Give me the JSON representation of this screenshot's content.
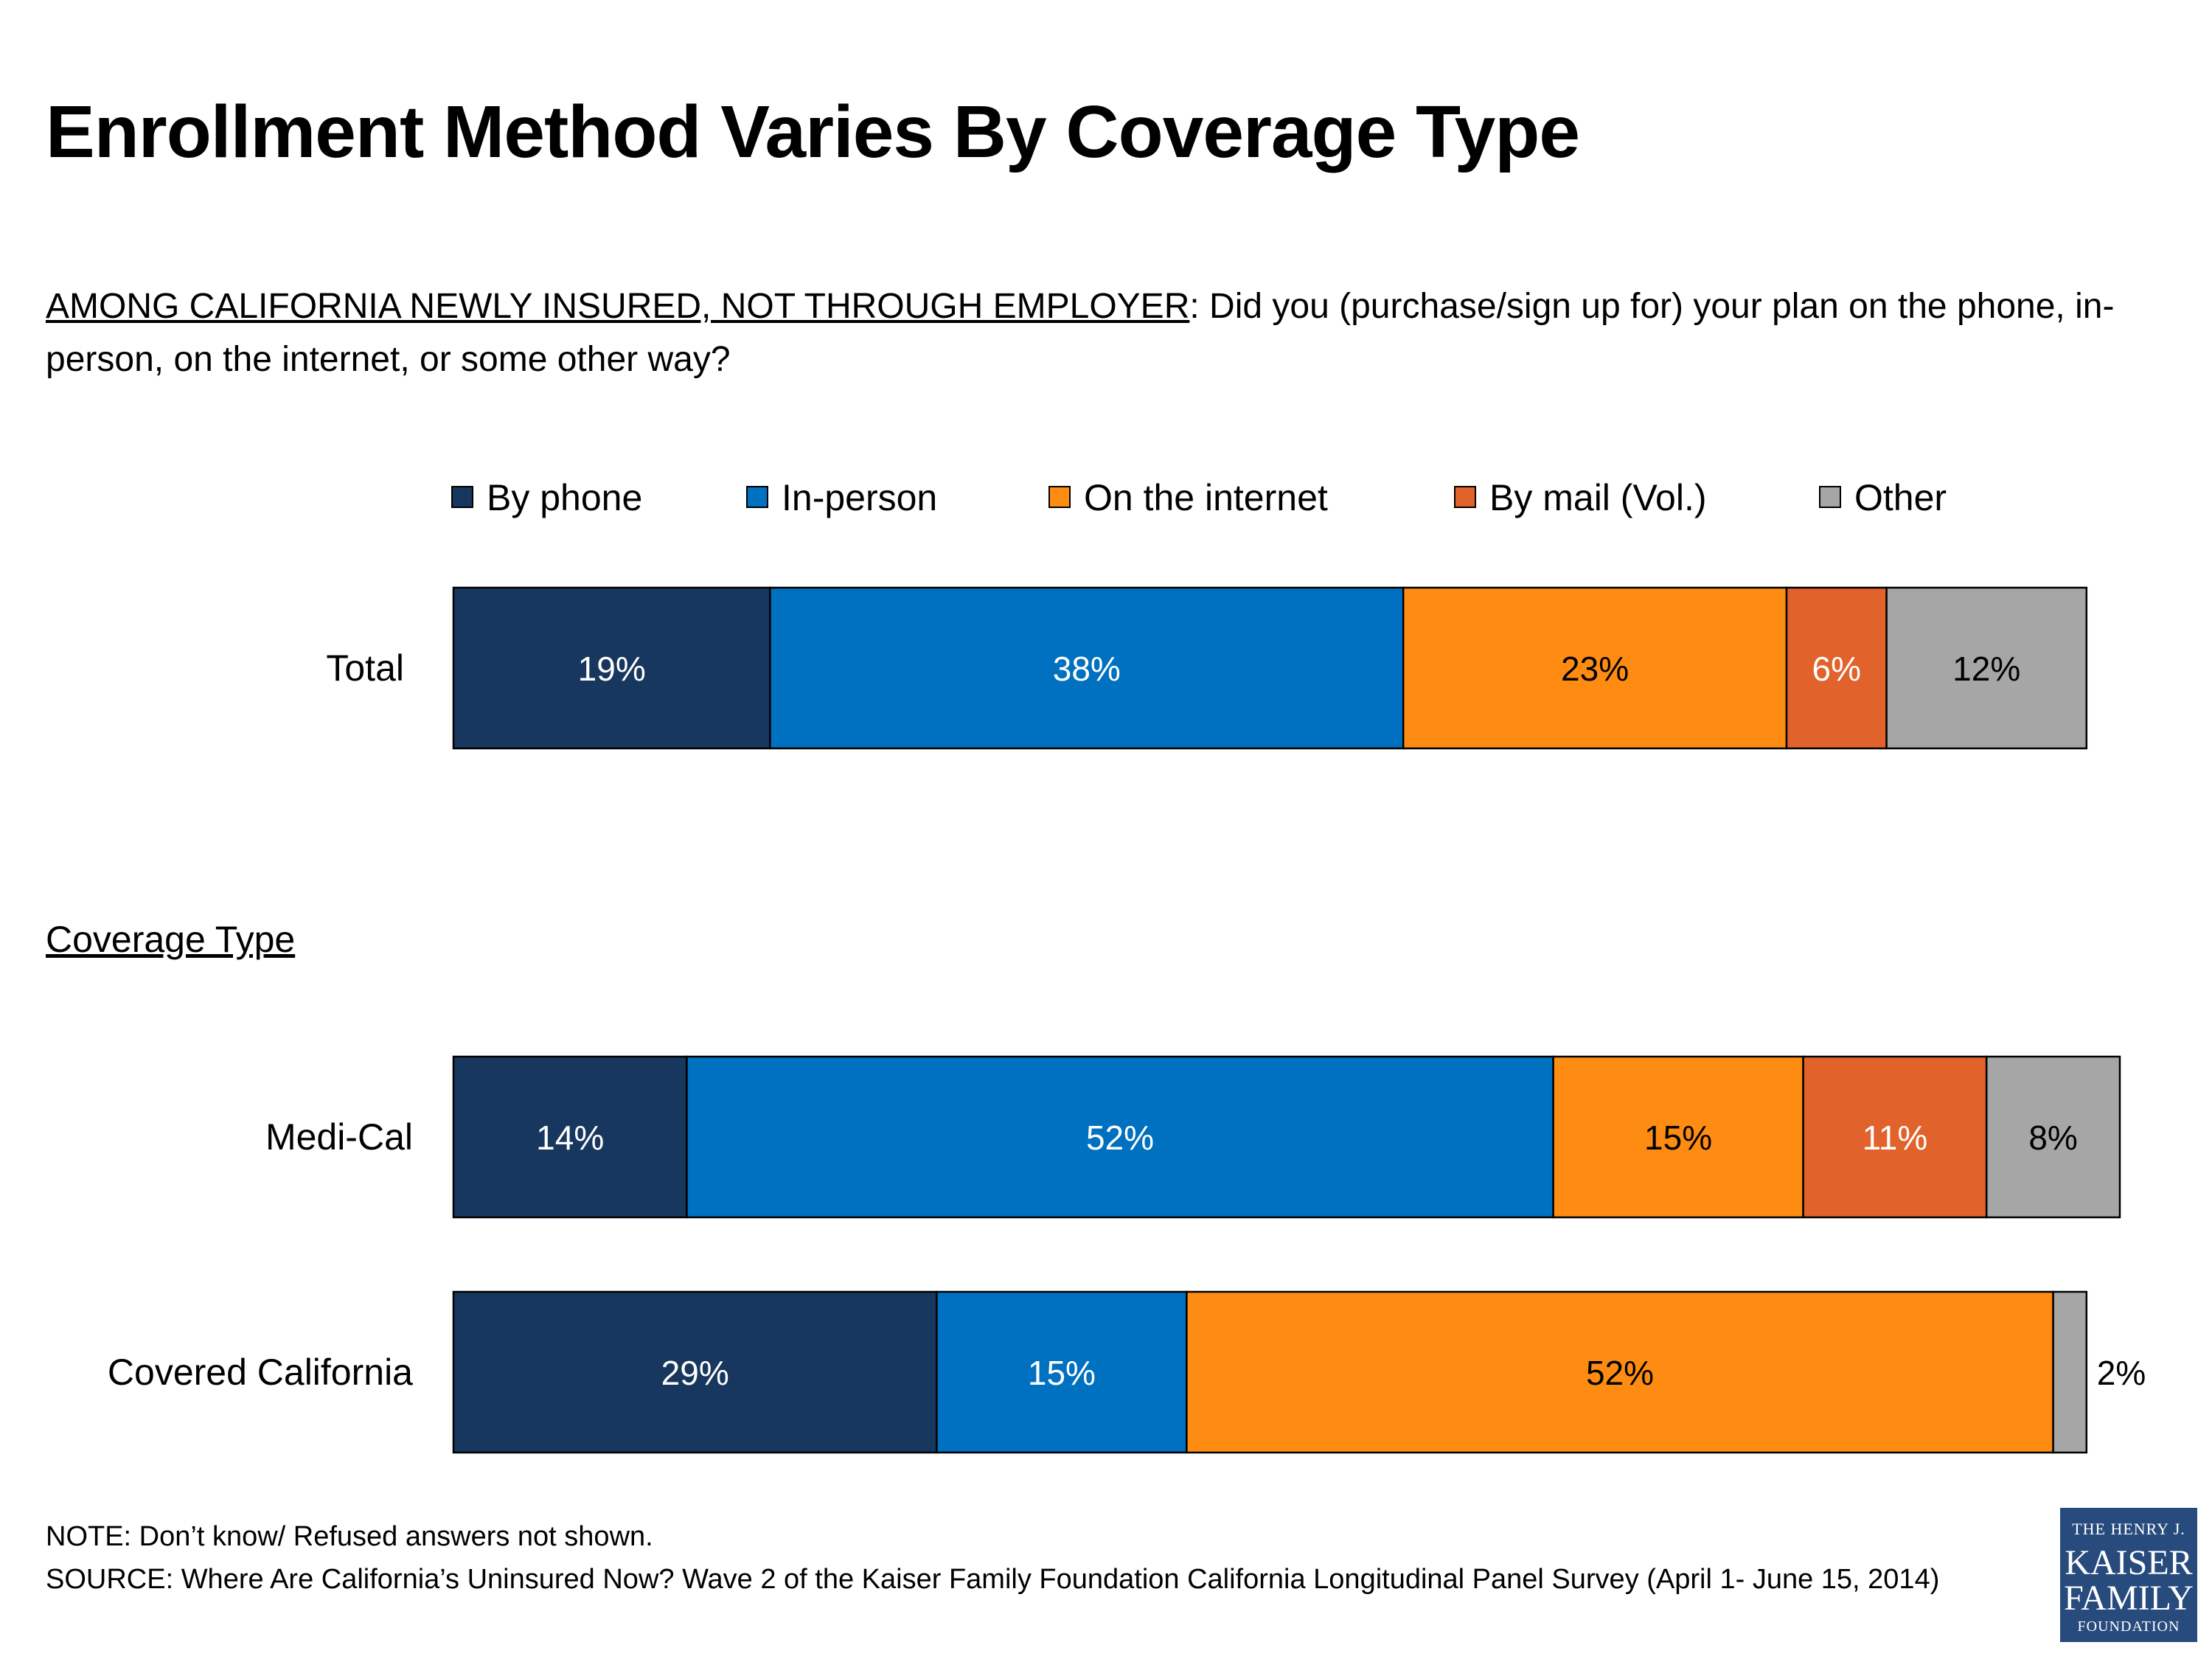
{
  "header": {
    "title": "Enrollment Method Varies By Coverage Type",
    "question_prefix": "AMONG CALIFORNIA NEWLY INSURED, NOT THROUGH EMPLOYER",
    "question_text": ": Did you (purchase/sign up for) your plan on the phone, in-person, on the internet, or some other way?"
  },
  "section_label": "Coverage Type",
  "colors": {
    "by_phone": "#17375e",
    "in_person": "#0070c0",
    "on_internet": "#ff8c12",
    "by_mail": "#e2622b",
    "other": "#a6a6a6"
  },
  "chart_data": {
    "type": "bar",
    "orientation": "horizontal",
    "stacked": true,
    "unit": "%",
    "categories": [
      "Total",
      "Medi-Cal",
      "Covered California"
    ],
    "series": [
      {
        "name": "By phone",
        "color": "#17375e",
        "values": [
          19,
          14,
          29
        ]
      },
      {
        "name": "In-person",
        "color": "#0070c0",
        "values": [
          38,
          52,
          15
        ]
      },
      {
        "name": "On the internet",
        "color": "#ff8c12",
        "values": [
          23,
          15,
          52
        ]
      },
      {
        "name": "By mail (Vol.)",
        "color": "#e2622b",
        "values": [
          6,
          11,
          null
        ]
      },
      {
        "name": "Other",
        "color": "#a6a6a6",
        "values": [
          12,
          8,
          2
        ]
      }
    ],
    "data_labels": [
      [
        "19%",
        "38%",
        "23%",
        "6%",
        "12%"
      ],
      [
        "14%",
        "52%",
        "15%",
        "11%",
        "8%"
      ],
      [
        "29%",
        "15%",
        "52%",
        "",
        "2%"
      ]
    ],
    "legend_position": "top",
    "grid": false,
    "axes_visible": false
  },
  "footer": {
    "note": "NOTE: Don’t know/ Refused answers not shown.",
    "source": "SOURCE: Where Are California’s Uninsured Now? Wave 2 of the Kaiser Family Foundation California Longitudinal Panel Survey (April 1- June 15, 2014)"
  },
  "logo": {
    "line1": "THE HENRY J.",
    "line2": "KAISER",
    "line3": "FAMILY",
    "line4": "FOUNDATION"
  }
}
